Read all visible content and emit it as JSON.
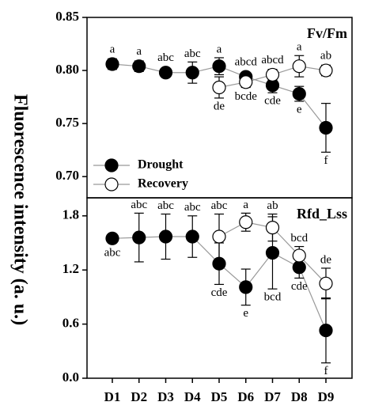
{
  "y_label": "Fluorescence intensity (a. u.)",
  "categories": [
    "D1",
    "D2",
    "D3",
    "D4",
    "D5",
    "D6",
    "D7",
    "D8",
    "D9"
  ],
  "chart_data": [
    {
      "type": "line",
      "label": "Fv/Fm",
      "ylim": [
        0.68,
        0.85
      ],
      "yticks": [
        0.85,
        {
          "value": 0.8,
          "label": "0.80"
        },
        0.75,
        {
          "value": 0.7,
          "label": "0.70"
        }
      ],
      "series": [
        {
          "name": "Drought",
          "color": "#000000",
          "values": [
            0.806,
            0.804,
            0.798,
            0.798,
            0.804,
            0.794,
            0.786,
            0.778,
            0.746
          ],
          "errors": [
            0.005,
            0.005,
            0.003,
            0.01,
            0.008,
            0.004,
            0.007,
            0.007,
            0.023
          ],
          "letters": [
            "a",
            "a",
            "abc",
            "abc",
            "a",
            "abcd",
            "cde",
            "e",
            "f"
          ]
        },
        {
          "name": "Recovery",
          "color": "#ffffff",
          "values": [
            null,
            null,
            null,
            null,
            0.784,
            0.789,
            0.796,
            0.804,
            0.8
          ],
          "errors": [
            null,
            null,
            null,
            null,
            0.01,
            0.005,
            0.005,
            0.01,
            0.005
          ],
          "letters": [
            null,
            null,
            null,
            null,
            "de",
            "bcde",
            "abcd",
            "a",
            "ab"
          ]
        }
      ]
    },
    {
      "type": "line",
      "label": "Rfd_Lss",
      "ylim": [
        0,
        2.0
      ],
      "yticks": [
        {
          "value": 0,
          "label": "0.0"
        },
        0.6,
        1.2,
        1.8
      ],
      "series": [
        {
          "color": "#000000",
          "values": [
            1.55,
            1.56,
            1.57,
            1.57,
            1.27,
            1.01,
            1.39,
            1.23,
            0.53
          ],
          "errors": [
            0.05,
            0.27,
            0.25,
            0.23,
            0.23,
            0.2,
            0.4,
            0.12,
            0.36
          ],
          "letters": [
            "abc",
            "abc",
            "abc",
            "abc",
            "cde",
            "e",
            "bcd",
            "cde",
            "f"
          ]
        },
        {
          "color": "#ffffff",
          "values": [
            null,
            null,
            null,
            null,
            1.57,
            1.73,
            1.67,
            1.36,
            1.05
          ],
          "errors": [
            null,
            null,
            null,
            null,
            0.25,
            0.1,
            0.15,
            0.1,
            0.17
          ],
          "letters": [
            null,
            null,
            null,
            null,
            "abc",
            "a",
            "ab",
            "bcd",
            "de"
          ]
        }
      ]
    }
  ]
}
